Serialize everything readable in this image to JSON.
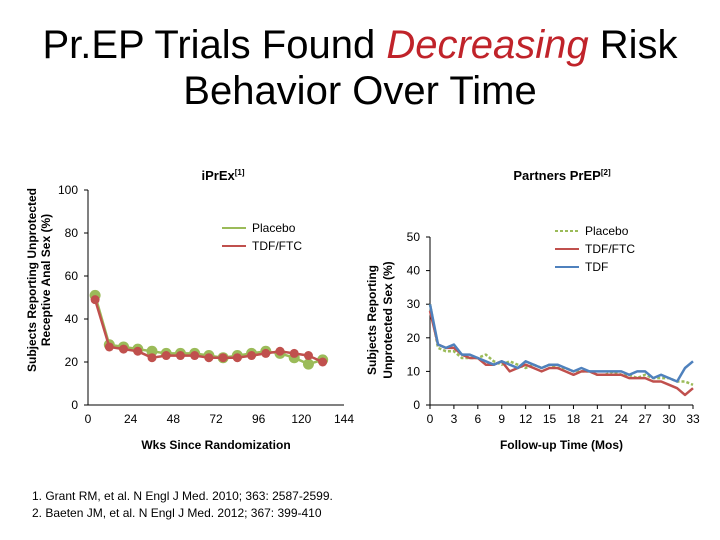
{
  "title": {
    "before": "Pr.EP Trials Found ",
    "highlight": "Decreasing",
    "after": " Risk Behavior Over Time",
    "highlight_color": "#c0232a"
  },
  "references": [
    "1. Grant RM, et al. N Engl J Med. 2010; 363: 2587-2599.",
    "2. Baeten JM, et al. N Engl J Med. 2012; 367: 399-410"
  ],
  "chart_data": [
    {
      "type": "line",
      "title": "iPrEx",
      "title_sup": "[1]",
      "xlabel": "Wks Since Randomization",
      "ylabel": "Subjects Reporting Unprotected Receptive Anal Sex (%)",
      "xlim": [
        0,
        144
      ],
      "ylim": [
        0,
        100
      ],
      "x_ticks": [
        0,
        24,
        48,
        72,
        96,
        120,
        144
      ],
      "y_ticks": [
        0,
        20,
        40,
        60,
        80,
        100
      ],
      "legend": "top-right",
      "x": [
        4,
        12,
        20,
        28,
        36,
        44,
        52,
        60,
        68,
        76,
        84,
        92,
        100,
        108,
        116,
        124,
        132
      ],
      "series": [
        {
          "name": "Placebo",
          "color": "#9bbb59",
          "values": [
            51,
            28,
            27,
            26,
            25,
            24,
            24,
            24,
            23,
            22,
            23,
            24,
            25,
            24,
            22,
            19,
            21
          ]
        },
        {
          "name": "TDF/FTC",
          "color": "#c0504d",
          "values": [
            49,
            27,
            26,
            25,
            22,
            23,
            23,
            23,
            22,
            22,
            22,
            23,
            24,
            25,
            24,
            23,
            20
          ]
        }
      ]
    },
    {
      "type": "line",
      "title": "Partners PrEP",
      "title_sup": "[2]",
      "xlabel": "Follow-up Time (Mos)",
      "ylabel": "Subjects Reporting Unprotected Sex (%)",
      "xlim": [
        0,
        33
      ],
      "ylim": [
        0,
        50
      ],
      "x_ticks": [
        0,
        3,
        6,
        9,
        12,
        15,
        18,
        21,
        24,
        27,
        30,
        33
      ],
      "y_ticks": [
        0,
        10,
        20,
        30,
        40,
        50
      ],
      "legend": "top-right",
      "x": [
        0,
        1,
        2,
        3,
        4,
        5,
        6,
        7,
        8,
        9,
        10,
        11,
        12,
        13,
        14,
        15,
        16,
        17,
        18,
        19,
        20,
        21,
        22,
        23,
        24,
        25,
        26,
        27,
        28,
        29,
        30,
        31,
        32,
        33
      ],
      "series": [
        {
          "name": "Placebo",
          "color": "#9bbb59",
          "dashed": true,
          "values": [
            30,
            17,
            16,
            16,
            14,
            14,
            14,
            15,
            13,
            12,
            13,
            12,
            11,
            12,
            11,
            12,
            11,
            11,
            10,
            10,
            10,
            9,
            9,
            10,
            9,
            9,
            8,
            9,
            8,
            8,
            8,
            7,
            7,
            6
          ]
        },
        {
          "name": "TDF/FTC",
          "color": "#c0504d",
          "values": [
            28,
            18,
            17,
            17,
            15,
            14,
            14,
            12,
            12,
            13,
            10,
            11,
            12,
            11,
            10,
            11,
            11,
            10,
            9,
            10,
            10,
            9,
            9,
            9,
            9,
            8,
            8,
            8,
            7,
            7,
            6,
            5,
            3,
            5
          ]
        },
        {
          "name": "TDF",
          "color": "#4f81bd",
          "values": [
            30,
            18,
            17,
            18,
            15,
            15,
            14,
            13,
            12,
            13,
            12,
            11,
            13,
            12,
            11,
            12,
            12,
            11,
            10,
            11,
            10,
            10,
            10,
            10,
            10,
            9,
            10,
            10,
            8,
            9,
            8,
            7,
            11,
            13
          ]
        }
      ]
    }
  ]
}
